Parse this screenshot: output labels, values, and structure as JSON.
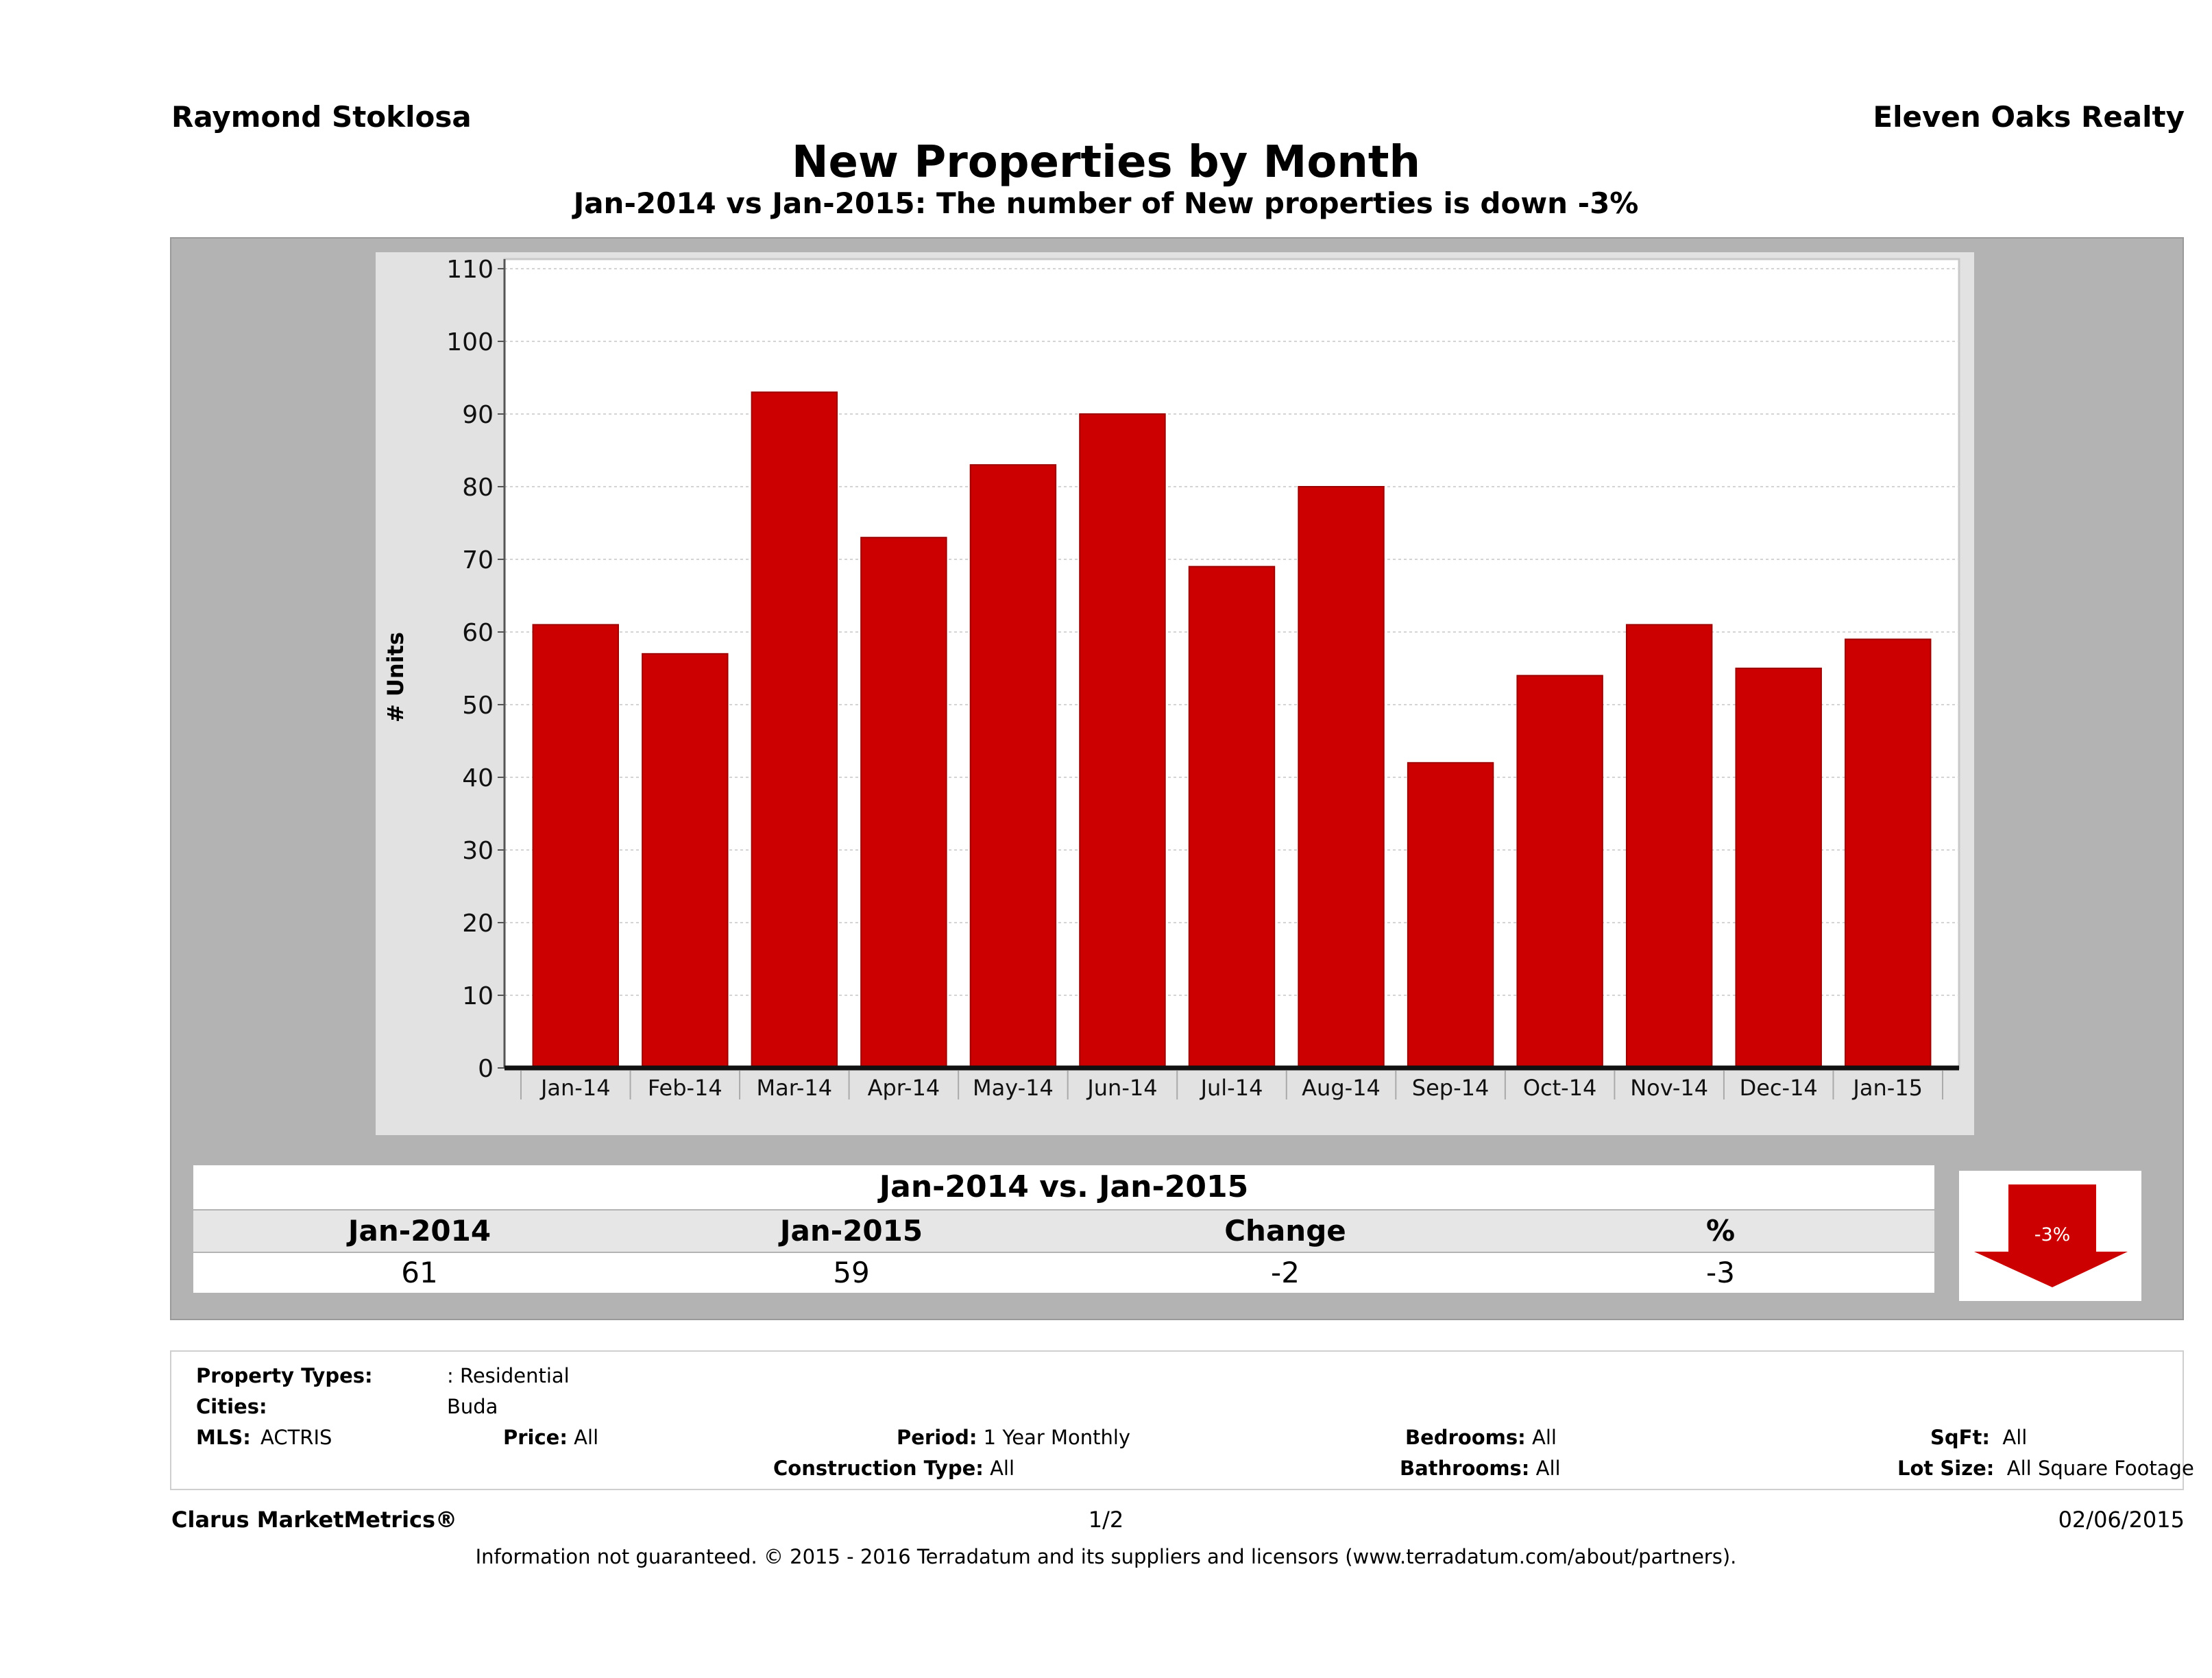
{
  "header": {
    "agent_name": "Raymond Stoklosa",
    "brokerage": "Eleven Oaks Realty"
  },
  "chart_data": {
    "type": "bar",
    "title": "New Properties by Month",
    "subtitle": "Jan-2014 vs Jan-2015: The number of New  properties is down -3%",
    "xlabel": "",
    "ylabel": "# Units",
    "ylim": [
      0,
      110
    ],
    "yticks": [
      "0",
      "10",
      "20",
      "30",
      "40",
      "50",
      "60",
      "70",
      "80",
      "90",
      "100",
      "110"
    ],
    "grid": true,
    "categories": [
      "Jan-14",
      "Feb-14",
      "Mar-14",
      "Apr-14",
      "May-14",
      "Jun-14",
      "Jul-14",
      "Aug-14",
      "Sep-14",
      "Oct-14",
      "Nov-14",
      "Dec-14",
      "Jan-15"
    ],
    "values": [
      61,
      57,
      93,
      73,
      83,
      90,
      69,
      80,
      42,
      54,
      61,
      55,
      59
    ],
    "bar_color": "#cc0000"
  },
  "summary": {
    "title": "Jan-2014 vs. Jan-2015",
    "headers": [
      "Jan-2014",
      "Jan-2015",
      "Change",
      "%"
    ],
    "values": [
      "61",
      "59",
      "-2",
      "-3"
    ],
    "badge_text": "-3%",
    "badge_direction": "down",
    "badge_color": "#cc0000"
  },
  "filters": {
    "property_types_label": "Property Types:",
    "property_types_value": ": Residential",
    "cities_label": "Cities:",
    "cities_value": "Buda",
    "mls_label": "MLS:",
    "mls_value": "ACTRIS",
    "price_label": "Price:",
    "price_value": "All",
    "period_label": "Period:",
    "period_value": "1 Year Monthly",
    "construction_label": "Construction Type:",
    "construction_value": "All",
    "bedrooms_label": "Bedrooms:",
    "bedrooms_value": "All",
    "bathrooms_label": "Bathrooms:",
    "bathrooms_value": "All",
    "sqft_label": "SqFt:",
    "sqft_value": "All",
    "lotsize_label": "Lot Size:",
    "lotsize_value": "All Square Footage"
  },
  "footer": {
    "brand": "Clarus MarketMetrics®",
    "page": "1/2",
    "date": "02/06/2015",
    "disclaimer": "Information not guaranteed. © 2015 - 2016 Terradatum and its suppliers and licensors (www.terradatum.com/about/partners)."
  }
}
